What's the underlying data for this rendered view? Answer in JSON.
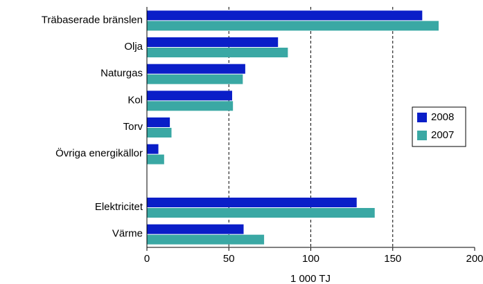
{
  "chart_data": {
    "type": "barh",
    "categories": [
      "Träbaserade bränslen",
      "Olja",
      "Naturgas",
      "Kol",
      "Torv",
      "Övriga energikällor",
      null,
      "Elektricitet",
      "Värme"
    ],
    "series": [
      {
        "name": "2008",
        "color": "#0a1ec8",
        "values": [
          168,
          80,
          60,
          52,
          14,
          7,
          null,
          128,
          59
        ]
      },
      {
        "name": "2007",
        "color": "#3aa8a4",
        "values": [
          178,
          86,
          58.5,
          52.5,
          15,
          10.5,
          null,
          139,
          71.5
        ]
      }
    ],
    "xlim": [
      0,
      200
    ],
    "xticks": [
      0,
      50,
      100,
      150,
      200
    ],
    "xlabel": "1 000 TJ",
    "grid": true,
    "legend": "right"
  }
}
